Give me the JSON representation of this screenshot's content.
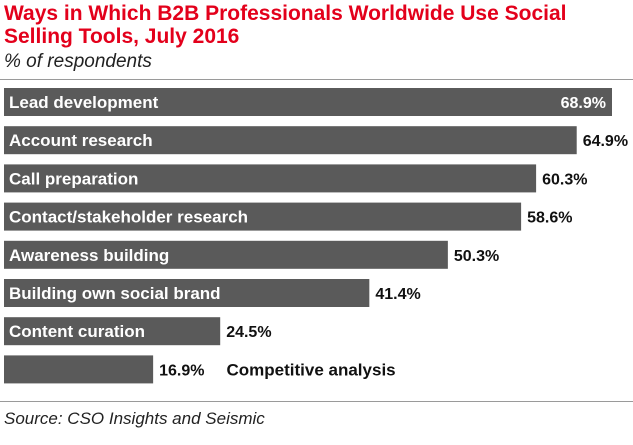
{
  "title": "Ways in Which B2B Professionals Worldwide Use Social Selling Tools, July 2016",
  "subtitle": "% of respondents",
  "source": "Source: CSO Insights and Seismic",
  "colors": {
    "title": "#e3001b",
    "bar": "#5a5a5a",
    "label_in_bar": "#ffffff",
    "label_out": "#111111"
  },
  "chart_data": {
    "type": "bar",
    "orientation": "horizontal",
    "categories": [
      "Lead development",
      "Account research",
      "Call preparation",
      "Contact/stakeholder research",
      "Awareness building",
      "Building own social brand",
      "Content curation",
      "Competitive analysis"
    ],
    "values": [
      68.9,
      64.9,
      60.3,
      58.6,
      50.3,
      41.4,
      24.5,
      16.9
    ],
    "value_labels": [
      "68.9%",
      "64.9%",
      "60.3%",
      "58.6%",
      "50.3%",
      "41.4%",
      "24.5%",
      "16.9%"
    ],
    "title": "Ways in Which B2B Professionals Worldwide Use Social Selling Tools, July 2016",
    "xlabel": "",
    "ylabel": "",
    "xlim": [
      0,
      68.9
    ],
    "grid": false
  }
}
